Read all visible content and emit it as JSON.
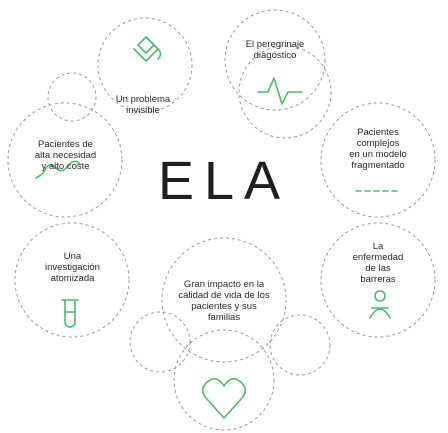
{
  "title": "ELA",
  "nodes": [
    {
      "id": "unknown",
      "text": "Un problema\ninvisible",
      "icon": "puzzle-piece-icon"
    },
    {
      "id": "diagnosis",
      "text": "El peregrinaje\ndiagóstico",
      "icon": "diagnosis-path-icon"
    },
    {
      "id": "complex",
      "text": "Pacientes\ncomplejos\nen un modelo\nfragmentado",
      "icon": "fragmented-line-icon"
    },
    {
      "id": "barriers",
      "text": "La\nenfermedad\nde las\nbarreras",
      "icon": "barrier-figure-icon"
    },
    {
      "id": "impact",
      "text": "Gran impacto en la\ncalidad de vida de los\npacientes y sus\nfamilias",
      "icon": "heart-icon"
    },
    {
      "id": "research",
      "text": "Una\ninvestigación\natomizada",
      "icon": "test-tube-icon"
    },
    {
      "id": "need",
      "text": "Pacientes de\nalta necesidad\ny alto coste",
      "icon": "cost-wave-icon"
    }
  ],
  "colors": {
    "icon": "#4bbd6f",
    "dash": "#9a9a9a",
    "text": "#2a2a2a"
  }
}
